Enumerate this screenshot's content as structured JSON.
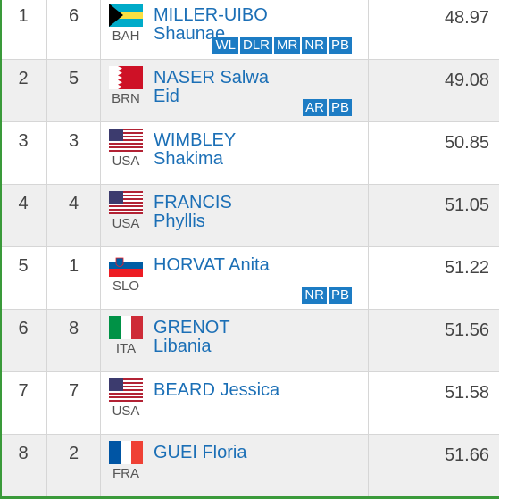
{
  "rows": [
    {
      "rank": "1",
      "lane": "6",
      "country": "BAH",
      "name": [
        "MILLER-UIBO",
        "Shaunae"
      ],
      "badges": [
        "WL",
        "DLR",
        "MR",
        "NR",
        "PB"
      ],
      "result": "48.97"
    },
    {
      "rank": "2",
      "lane": "5",
      "country": "BRN",
      "name": [
        "NASER Salwa",
        "Eid"
      ],
      "badges": [
        "AR",
        "PB"
      ],
      "result": "49.08"
    },
    {
      "rank": "3",
      "lane": "3",
      "country": "USA",
      "name": [
        "WIMBLEY",
        "Shakima"
      ],
      "badges": [],
      "result": "50.85"
    },
    {
      "rank": "4",
      "lane": "4",
      "country": "USA",
      "name": [
        "FRANCIS",
        "Phyllis"
      ],
      "badges": [],
      "result": "51.05"
    },
    {
      "rank": "5",
      "lane": "1",
      "country": "SLO",
      "name": [
        "HORVAT Anita"
      ],
      "badges": [
        "NR",
        "PB"
      ],
      "result": "51.22"
    },
    {
      "rank": "6",
      "lane": "8",
      "country": "ITA",
      "name": [
        "GRENOT",
        "Libania"
      ],
      "badges": [],
      "result": "51.56"
    },
    {
      "rank": "7",
      "lane": "7",
      "country": "USA",
      "name": [
        "BEARD Jessica"
      ],
      "badges": [],
      "result": "51.58"
    },
    {
      "rank": "8",
      "lane": "2",
      "country": "FRA",
      "name": [
        "GUEI Floria"
      ],
      "badges": [],
      "result": "51.66"
    }
  ]
}
